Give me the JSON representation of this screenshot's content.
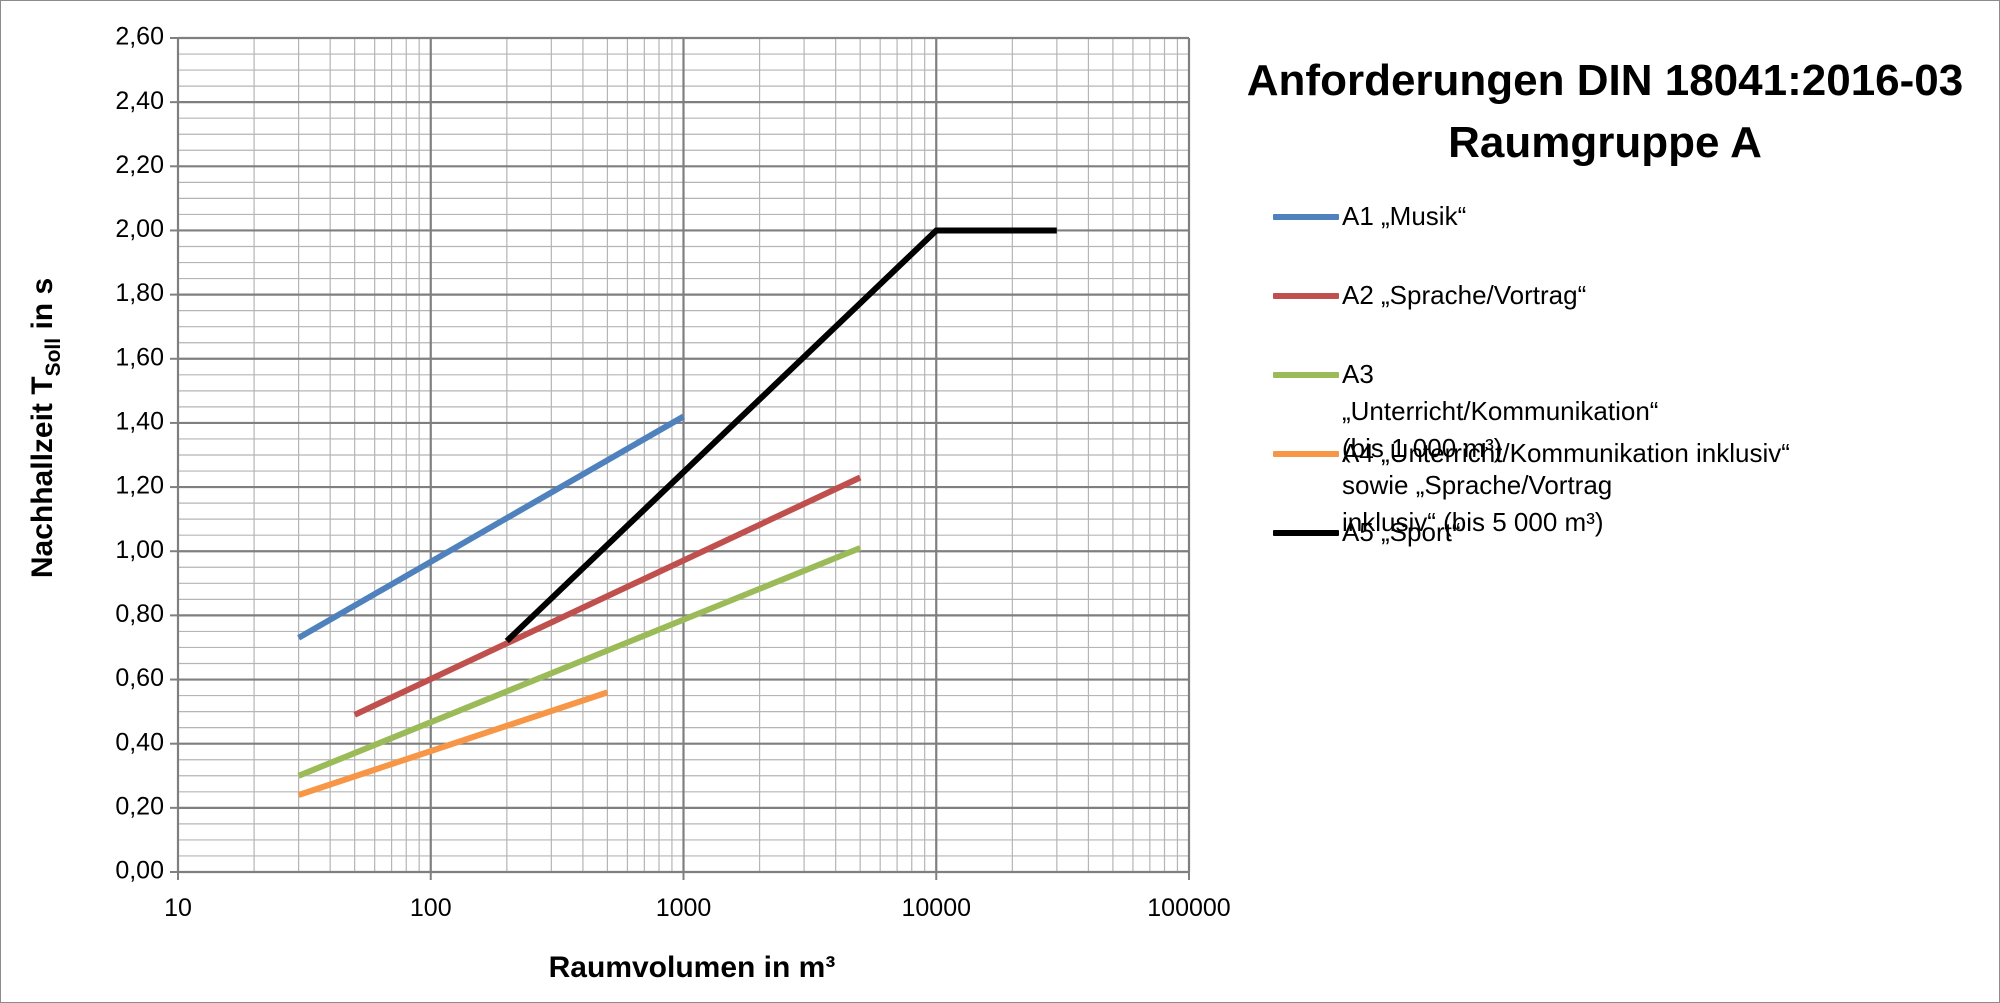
{
  "chart_data": {
    "type": "line",
    "title": [
      "Anforderungen DIN 18041:2016-03",
      "Raumgruppe A"
    ],
    "ylabel": {
      "main": "Nachhallzeit T",
      "sub": "Soll",
      "tail": " in s"
    },
    "xlabel": "Raumvolumen in m³",
    "x_scale": "log",
    "xlim": [
      10,
      100000
    ],
    "ylim": [
      0,
      2.6
    ],
    "x_ticks": [
      10,
      100,
      1000,
      10000,
      100000
    ],
    "x_tick_labels": [
      "10",
      "100",
      "1000",
      "10000",
      "100000"
    ],
    "y_ticks": [
      0,
      0.2,
      0.4,
      0.6,
      0.8,
      1.0,
      1.2,
      1.4,
      1.6,
      1.8,
      2.0,
      2.2,
      2.4,
      2.6
    ],
    "y_tick_labels": [
      "0,00",
      "0,20",
      "0,40",
      "0,60",
      "0,80",
      "1,00",
      "1,20",
      "1,40",
      "1,60",
      "1,80",
      "2,00",
      "2,20",
      "2,40",
      "2,60"
    ],
    "grid": true,
    "legend_position": "right",
    "series": [
      {
        "name": "A1 „Musik“",
        "color": "#4f81bd",
        "x": [
          30,
          1000
        ],
        "y": [
          0.73,
          1.42
        ]
      },
      {
        "name": "A2 „Sprache/Vortrag“",
        "color": "#c0504d",
        "x": [
          50,
          5000
        ],
        "y": [
          0.49,
          1.23
        ]
      },
      {
        "name": "A3 „Unterricht/Kommunikation“ (bis 1 000 m³)\nsowie „Sprache/Vortrag inklusiv“ (bis 5 000 m³)",
        "color": "#9bbb59",
        "x": [
          30,
          5000
        ],
        "y": [
          0.3,
          1.01
        ]
      },
      {
        "name": "A4 „Unterricht/Kommunikation inklusiv“",
        "color": "#f79646",
        "x": [
          30,
          500
        ],
        "y": [
          0.24,
          0.56
        ]
      },
      {
        "name": "A5 „Sport“",
        "color": "#000000",
        "x": [
          200,
          10000,
          30000
        ],
        "y": [
          0.72,
          2.0,
          2.0
        ]
      }
    ]
  }
}
